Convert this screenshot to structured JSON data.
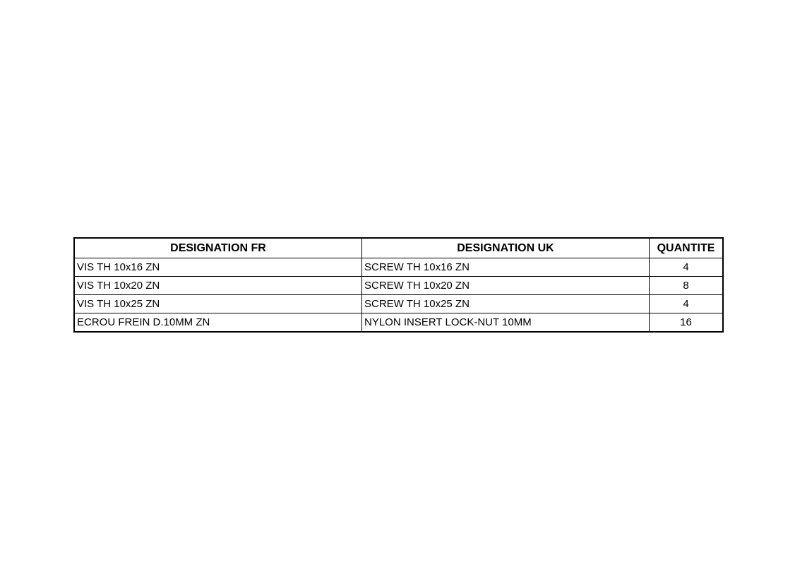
{
  "table": {
    "headers": [
      "DESIGNATION FR",
      "DESIGNATION UK",
      "QUANTITE"
    ],
    "rows": [
      [
        "VIS TH 10x16 ZN",
        "SCREW TH 10x16 ZN",
        "4"
      ],
      [
        "VIS TH 10x20 ZN",
        "SCREW TH 10x20 ZN",
        "8"
      ],
      [
        "VIS TH 10x25 ZN",
        "SCREW TH 10x25 ZN",
        "4"
      ],
      [
        "ECROU FREIN D.10MM ZN",
        "NYLON INSERT LOCK-NUT 10MM",
        "16"
      ]
    ]
  }
}
